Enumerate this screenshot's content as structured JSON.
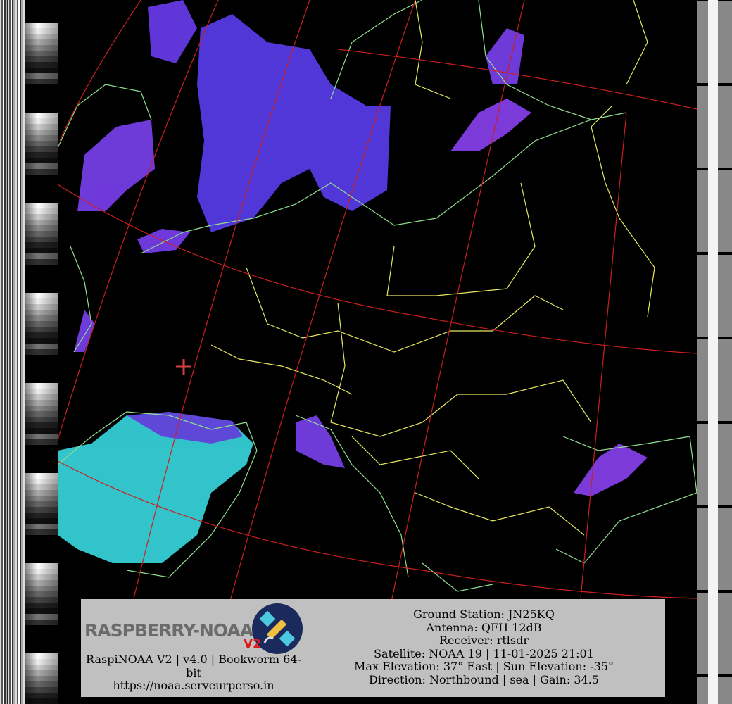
{
  "info_box": {
    "logo": {
      "text": "RASPBERRY-NOAA",
      "badge": "V2"
    },
    "software": "RaspiNOAA V2 | v4.0 | Bookworm 64-bit",
    "url": "https://noaa.serveurperso.in",
    "details": [
      "Ground Station: JN25KQ",
      "Antenna: QFH 12dB",
      "Receiver: rtlsdr",
      "Satellite: NOAA 19 | 11-01-2025 21:01",
      "Max Elevation: 37° East | Sun Elevation: -35°",
      "Direction: Northbound | sea | Gain: 34.5"
    ]
  },
  "colors": {
    "graticule": "#cc1f1f",
    "borders": "#e8e860",
    "coastlines": "#90e090",
    "clouds_high": "#7a3cff",
    "clouds_low": "#40e0e0",
    "ground_station_marker": "#d04040"
  }
}
